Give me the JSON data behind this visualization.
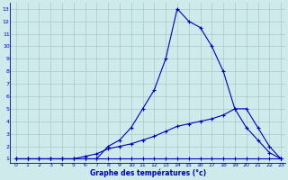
{
  "xlabel": "Graphe des températures (°c)",
  "background_color": "#ceeaea",
  "grid_color": "#a8c8c8",
  "line_color": "#0000bb",
  "xlim": [
    -0.5,
    23.4
  ],
  "ylim": [
    0.7,
    13.5
  ],
  "xticks": [
    0,
    1,
    2,
    3,
    4,
    5,
    6,
    7,
    8,
    9,
    10,
    11,
    12,
    13,
    14,
    15,
    16,
    17,
    18,
    19,
    20,
    21,
    22,
    23
  ],
  "yticks": [
    1,
    2,
    3,
    4,
    5,
    6,
    7,
    8,
    9,
    10,
    11,
    12,
    13
  ],
  "line1_x": [
    0,
    1,
    2,
    3,
    4,
    5,
    6,
    7,
    8,
    9,
    10,
    11,
    12,
    13,
    14,
    15,
    16,
    17,
    18,
    19,
    20,
    21,
    22,
    23
  ],
  "line1_y": [
    1,
    1,
    1,
    1,
    1,
    1,
    1,
    1,
    2,
    2.5,
    3.5,
    5,
    6.5,
    9,
    13,
    12,
    11.5,
    10,
    8,
    5,
    5,
    3.5,
    2,
    1
  ],
  "line2_x": [
    0,
    1,
    2,
    3,
    4,
    5,
    6,
    7,
    8,
    9,
    10,
    11,
    12,
    13,
    14,
    15,
    16,
    17,
    18,
    19,
    20,
    21,
    22,
    23
  ],
  "line2_y": [
    1,
    1,
    1,
    1,
    1,
    1,
    1.2,
    1.4,
    1.8,
    2,
    2.2,
    2.5,
    2.8,
    3.2,
    3.6,
    3.8,
    4,
    4.2,
    4.5,
    5,
    3.5,
    2.5,
    1.5,
    1
  ],
  "line3_x": [
    0,
    1,
    2,
    3,
    4,
    5,
    6,
    7,
    8,
    9,
    10,
    11,
    12,
    13,
    14,
    15,
    16,
    17,
    18,
    19,
    20,
    21,
    22,
    23
  ],
  "line3_y": [
    1,
    1,
    1,
    1,
    1,
    1,
    1,
    1,
    1,
    1,
    1,
    1,
    1,
    1,
    1,
    1,
    1,
    1,
    1,
    1,
    1,
    1,
    1,
    1
  ]
}
